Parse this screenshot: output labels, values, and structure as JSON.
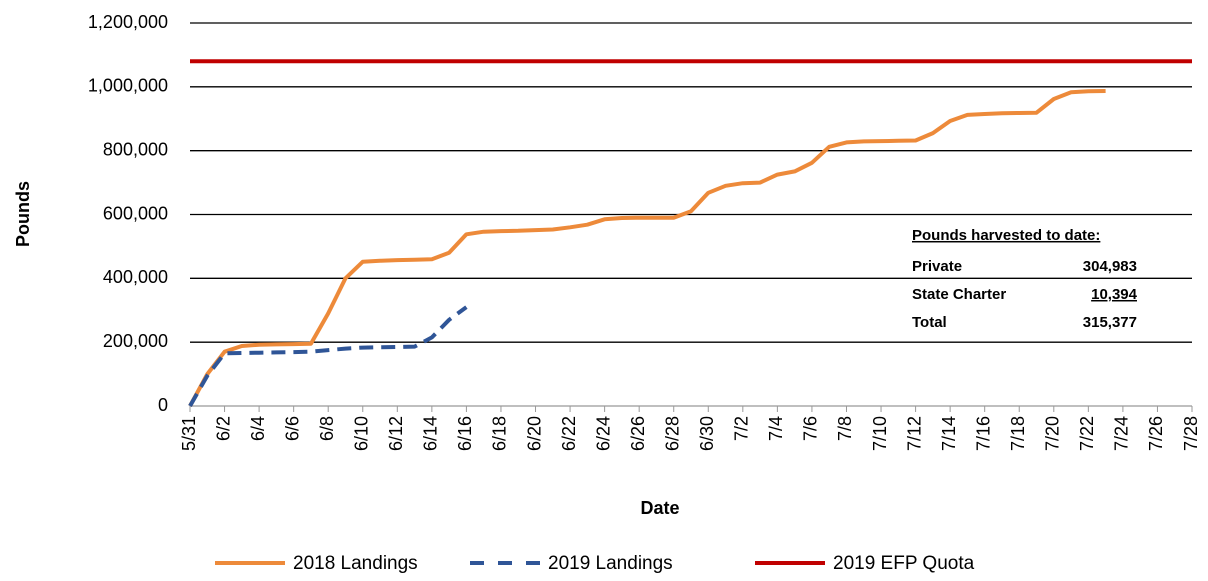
{
  "chart_data": {
    "type": "line",
    "x_label": "Date",
    "y_label": "Pounds",
    "categories": [
      "5/31",
      null,
      "6/2",
      null,
      "6/4",
      null,
      "6/6",
      null,
      "6/8",
      null,
      "6/10",
      null,
      "6/12",
      null,
      "6/14",
      null,
      "6/16",
      null,
      "6/18",
      null,
      "6/20",
      null,
      "6/22",
      null,
      "6/24",
      null,
      "6/26",
      null,
      "6/28",
      null,
      "6/30",
      null,
      "7/2",
      null,
      "7/4",
      null,
      "7/6",
      null,
      "7/8",
      null,
      "7/10",
      null,
      "7/12",
      null,
      "7/14",
      null,
      "7/16",
      null,
      "7/18",
      null,
      "7/20",
      null,
      "7/22",
      null,
      "7/24",
      null,
      "7/26",
      null,
      "7/28"
    ],
    "series": [
      {
        "name": "2018 Landings",
        "color": "#ed8a3a",
        "dash": false,
        "values": [
          0,
          100000,
          170000,
          188000,
          192000,
          193000,
          194000,
          195000,
          290000,
          400000,
          452000,
          455000,
          457000,
          458000,
          460000,
          480000,
          538000,
          546000,
          548000,
          549000,
          551000,
          553000,
          560000,
          568000,
          585000,
          589000,
          590000,
          590000,
          590000,
          610000,
          668000,
          690000,
          698000,
          700000,
          725000,
          735000,
          762000,
          812000,
          826000,
          829000,
          830000,
          831000,
          832000,
          855000,
          893000,
          912000,
          915000,
          917000,
          918000,
          919000,
          962000,
          983000,
          986000,
          987000,
          null,
          null,
          null,
          null,
          null
        ]
      },
      {
        "name": "2019 Landings",
        "color": "#2f5597",
        "dash": true,
        "values": [
          0,
          95000,
          165000,
          166000,
          167000,
          168000,
          169000,
          170000,
          175000,
          180000,
          183000,
          184000,
          185000,
          186000,
          215000,
          270000,
          310000,
          null,
          null,
          null,
          null,
          null,
          null,
          null,
          null,
          null,
          null,
          null,
          null,
          null,
          null,
          null,
          null,
          null,
          null,
          null,
          null,
          null,
          null,
          null,
          null,
          null,
          null,
          null,
          null,
          null,
          null,
          null,
          null,
          null,
          null,
          null,
          null,
          null,
          null,
          null,
          null,
          null,
          null
        ]
      },
      {
        "name": "2019 EFP Quota",
        "color": "#c00000",
        "dash": false,
        "values": [
          1080000,
          1080000,
          1080000,
          1080000,
          1080000,
          1080000,
          1080000,
          1080000,
          1080000,
          1080000,
          1080000,
          1080000,
          1080000,
          1080000,
          1080000,
          1080000,
          1080000,
          1080000,
          1080000,
          1080000,
          1080000,
          1080000,
          1080000,
          1080000,
          1080000,
          1080000,
          1080000,
          1080000,
          1080000,
          1080000,
          1080000,
          1080000,
          1080000,
          1080000,
          1080000,
          1080000,
          1080000,
          1080000,
          1080000,
          1080000,
          1080000,
          1080000,
          1080000,
          1080000,
          1080000,
          1080000,
          1080000,
          1080000,
          1080000,
          1080000,
          1080000,
          1080000,
          1080000,
          1080000,
          1080000,
          1080000,
          1080000,
          1080000,
          1080000
        ]
      }
    ],
    "ylim": [
      0,
      1200000
    ],
    "yticks": [
      0,
      {
        "value": 200000,
        "label": "200,000"
      },
      {
        "value": 400000,
        "label": "400,000"
      },
      {
        "value": 600000,
        "label": "600,000"
      },
      {
        "value": 800000,
        "label": "800,000"
      },
      {
        "value": 1000000,
        "label": "1,000,000"
      },
      {
        "value": 1200000,
        "label": "1,200,000"
      }
    ],
    "grid": true,
    "legend": "bottom",
    "annotation": {
      "heading": "Pounds harvested to date:",
      "rows": [
        [
          "Private",
          "304,983"
        ],
        [
          "State Charter",
          "10,394"
        ],
        [
          "Total",
          "315,377"
        ]
      ]
    }
  }
}
